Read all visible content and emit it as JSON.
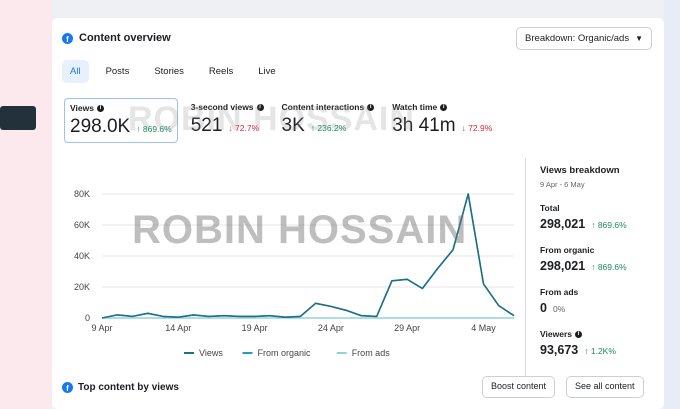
{
  "header": {
    "title": "Content overview",
    "breakdown": "Breakdown: Organic/ads"
  },
  "tabs": [
    "All",
    "Posts",
    "Stories",
    "Reels",
    "Live"
  ],
  "metrics": [
    {
      "label": "Views",
      "value": "298.0K",
      "change": "869.6%",
      "direction": "up"
    },
    {
      "label": "3-second views",
      "value": "521",
      "change": "72.7%",
      "direction": "down"
    },
    {
      "label": "Content interactions",
      "value": "3K",
      "change": "236.2%",
      "direction": "up"
    },
    {
      "label": "Watch time",
      "value": "3h 41m",
      "change": "72.9%",
      "direction": "down"
    }
  ],
  "watermark": "ROBIN HOSSAIN",
  "chart_data": {
    "type": "line",
    "x": [
      "9 Apr",
      "10 Apr",
      "11 Apr",
      "12 Apr",
      "13 Apr",
      "14 Apr",
      "15 Apr",
      "16 Apr",
      "17 Apr",
      "18 Apr",
      "19 Apr",
      "20 Apr",
      "21 Apr",
      "22 Apr",
      "23 Apr",
      "24 Apr",
      "25 Apr",
      "26 Apr",
      "27 Apr",
      "28 Apr",
      "29 Apr",
      "30 Apr",
      "1 May",
      "2 May",
      "3 May",
      "4 May",
      "5 May",
      "6 May"
    ],
    "xticks": [
      "9 Apr",
      "14 Apr",
      "19 Apr",
      "24 Apr",
      "29 Apr",
      "4 May"
    ],
    "yticks": [
      "0",
      "20K",
      "40K",
      "60K",
      "80K"
    ],
    "ylim": [
      0,
      80000
    ],
    "series": [
      {
        "name": "Views",
        "color": "#1e6f86",
        "values": [
          0,
          2000,
          1000,
          3000,
          1000,
          500,
          2000,
          1000,
          1500,
          1000,
          1000,
          1500,
          500,
          1000,
          9500,
          7500,
          5000,
          1500,
          1000,
          24000,
          25000,
          19000,
          32000,
          44000,
          80000,
          22000,
          8000,
          1500
        ]
      },
      {
        "name": "From organic",
        "color": "#1fa0b8",
        "values": [
          0,
          2000,
          1000,
          3000,
          1000,
          500,
          2000,
          1000,
          1500,
          1000,
          1000,
          1500,
          500,
          1000,
          9500,
          7500,
          5000,
          1500,
          1000,
          24000,
          25000,
          19000,
          32000,
          44000,
          80000,
          22000,
          8000,
          1500
        ]
      },
      {
        "name": "From ads",
        "color": "#8fd3e0",
        "values": [
          0,
          0,
          0,
          0,
          0,
          0,
          0,
          0,
          0,
          0,
          0,
          0,
          0,
          0,
          0,
          0,
          0,
          0,
          0,
          0,
          0,
          0,
          0,
          0,
          0,
          0,
          0,
          0
        ]
      }
    ],
    "legend_position": "bottom"
  },
  "side": {
    "title": "Views breakdown",
    "range": "9 Apr - 6 May",
    "total_label": "Total",
    "total_value": "298,021",
    "total_change": "869.6%",
    "organic_label": "From organic",
    "organic_value": "298,021",
    "organic_change": "869.6%",
    "ads_label": "From ads",
    "ads_value": "0",
    "ads_change": "0%",
    "viewers_label": "Viewers",
    "viewers_value": "93,673",
    "viewers_change": "1.2K%"
  },
  "bottom": {
    "title": "Top content by views",
    "btn1": "Boost content",
    "btn2": "See all content"
  },
  "colors": {
    "accent": "#1877f2",
    "up": "#1a8a5a",
    "down": "#d1293d"
  }
}
